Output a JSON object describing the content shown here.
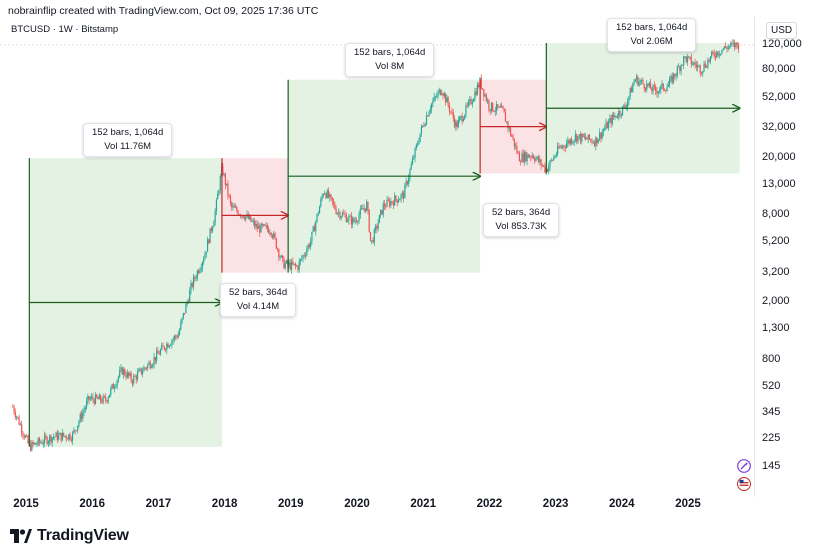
{
  "header": {
    "credit": "nobrainflip created with TradingView.com, Oct 09, 2025 17:36 UTC",
    "symbol": "BTCUSD · 1W · Bitstamp"
  },
  "price_axis": {
    "currency": "USD",
    "ticks": [
      "120,000",
      "80,000",
      "52,000",
      "32,000",
      "20,000",
      "13,000",
      "8,000",
      "5,200",
      "3,200",
      "2,000",
      "1,300",
      "800",
      "520",
      "345",
      "225",
      "145"
    ]
  },
  "time_axis": {
    "ticks": [
      "2015",
      "2016",
      "2017",
      "2018",
      "2019",
      "2020",
      "2021",
      "2022",
      "2023",
      "2024",
      "2025"
    ]
  },
  "annotations": [
    {
      "line1": "152 bars, 1,064d",
      "line2": "Vol 11.76M"
    },
    {
      "line1": "52 bars, 364d",
      "line2": "Vol 4.14M"
    },
    {
      "line1": "152 bars, 1,064d",
      "line2": "Vol 8M"
    },
    {
      "line1": "52 bars, 364d",
      "line2": "Vol 853.73K"
    },
    {
      "line1": "152 bars, 1,064d",
      "line2": "Vol 2.06M"
    }
  ],
  "footer": {
    "brand": "TradingView"
  },
  "colors": {
    "bull_zone": "#e3f2e3",
    "bear_zone": "#fbe3e5",
    "bull_arrow": "#1b5e20",
    "bear_arrow": "#c62828",
    "candle_up": "#26a69a",
    "candle_down": "#ef5350"
  },
  "chart_data": {
    "type": "candlestick",
    "symbol": "BTCUSD",
    "interval": "1W",
    "exchange": "Bitstamp",
    "y_scale": "log",
    "ylim": [
      110,
      135000
    ],
    "x_range": [
      2014.75,
      2025.85
    ],
    "price_path": [
      [
        2014.8,
        380
      ],
      [
        2015.05,
        200
      ],
      [
        2015.4,
        235
      ],
      [
        2015.7,
        240
      ],
      [
        2015.95,
        430
      ],
      [
        2016.2,
        420
      ],
      [
        2016.45,
        680
      ],
      [
        2016.6,
        580
      ],
      [
        2016.9,
        780
      ],
      [
        2017.1,
        1000
      ],
      [
        2017.3,
        1200
      ],
      [
        2017.5,
        2600
      ],
      [
        2017.7,
        4300
      ],
      [
        2017.85,
        8000
      ],
      [
        2017.96,
        17000
      ],
      [
        2018.1,
        9000
      ],
      [
        2018.3,
        8000
      ],
      [
        2018.5,
        6500
      ],
      [
        2018.7,
        6400
      ],
      [
        2018.88,
        3700
      ],
      [
        2019.1,
        3500
      ],
      [
        2019.3,
        5300
      ],
      [
        2019.5,
        12000
      ],
      [
        2019.7,
        8500
      ],
      [
        2019.95,
        7200
      ],
      [
        2020.15,
        9500
      ],
      [
        2020.21,
        5000
      ],
      [
        2020.4,
        9300
      ],
      [
        2020.7,
        11000
      ],
      [
        2020.95,
        29000
      ],
      [
        2021.1,
        45000
      ],
      [
        2021.28,
        60000
      ],
      [
        2021.5,
        33000
      ],
      [
        2021.7,
        47000
      ],
      [
        2021.86,
        67000
      ],
      [
        2022.0,
        45000
      ],
      [
        2022.2,
        42000
      ],
      [
        2022.45,
        20000
      ],
      [
        2022.65,
        21000
      ],
      [
        2022.86,
        16500
      ],
      [
        2023.05,
        23000
      ],
      [
        2023.3,
        28000
      ],
      [
        2023.6,
        26000
      ],
      [
        2023.85,
        37000
      ],
      [
        2024.05,
        45000
      ],
      [
        2024.2,
        70000
      ],
      [
        2024.5,
        58000
      ],
      [
        2024.7,
        63000
      ],
      [
        2024.95,
        98000
      ],
      [
        2025.2,
        82000
      ],
      [
        2025.4,
        105000
      ],
      [
        2025.6,
        117000
      ],
      [
        2025.78,
        121000
      ]
    ],
    "cycles": [
      {
        "phase": "bull",
        "start_year": 2015.05,
        "end_year": 2017.96,
        "low": 200,
        "high": 19800,
        "bars": 152,
        "days": 1064,
        "volume": "11.76M"
      },
      {
        "phase": "bear",
        "start_year": 2017.96,
        "end_year": 2018.96,
        "low": 3200,
        "high": 19800,
        "bars": 52,
        "days": 364,
        "volume": "4.14M"
      },
      {
        "phase": "bull",
        "start_year": 2018.96,
        "end_year": 2021.86,
        "low": 3200,
        "high": 69000,
        "bars": 152,
        "days": 1064,
        "volume": "8M"
      },
      {
        "phase": "bear",
        "start_year": 2021.86,
        "end_year": 2022.86,
        "low": 15500,
        "high": 69000,
        "bars": 52,
        "days": 364,
        "volume": "853.73K"
      },
      {
        "phase": "bull",
        "start_year": 2022.86,
        "end_year": 2025.78,
        "low": 15500,
        "high": 124000,
        "bars": 152,
        "days": 1064,
        "volume": "2.06M"
      }
    ]
  }
}
